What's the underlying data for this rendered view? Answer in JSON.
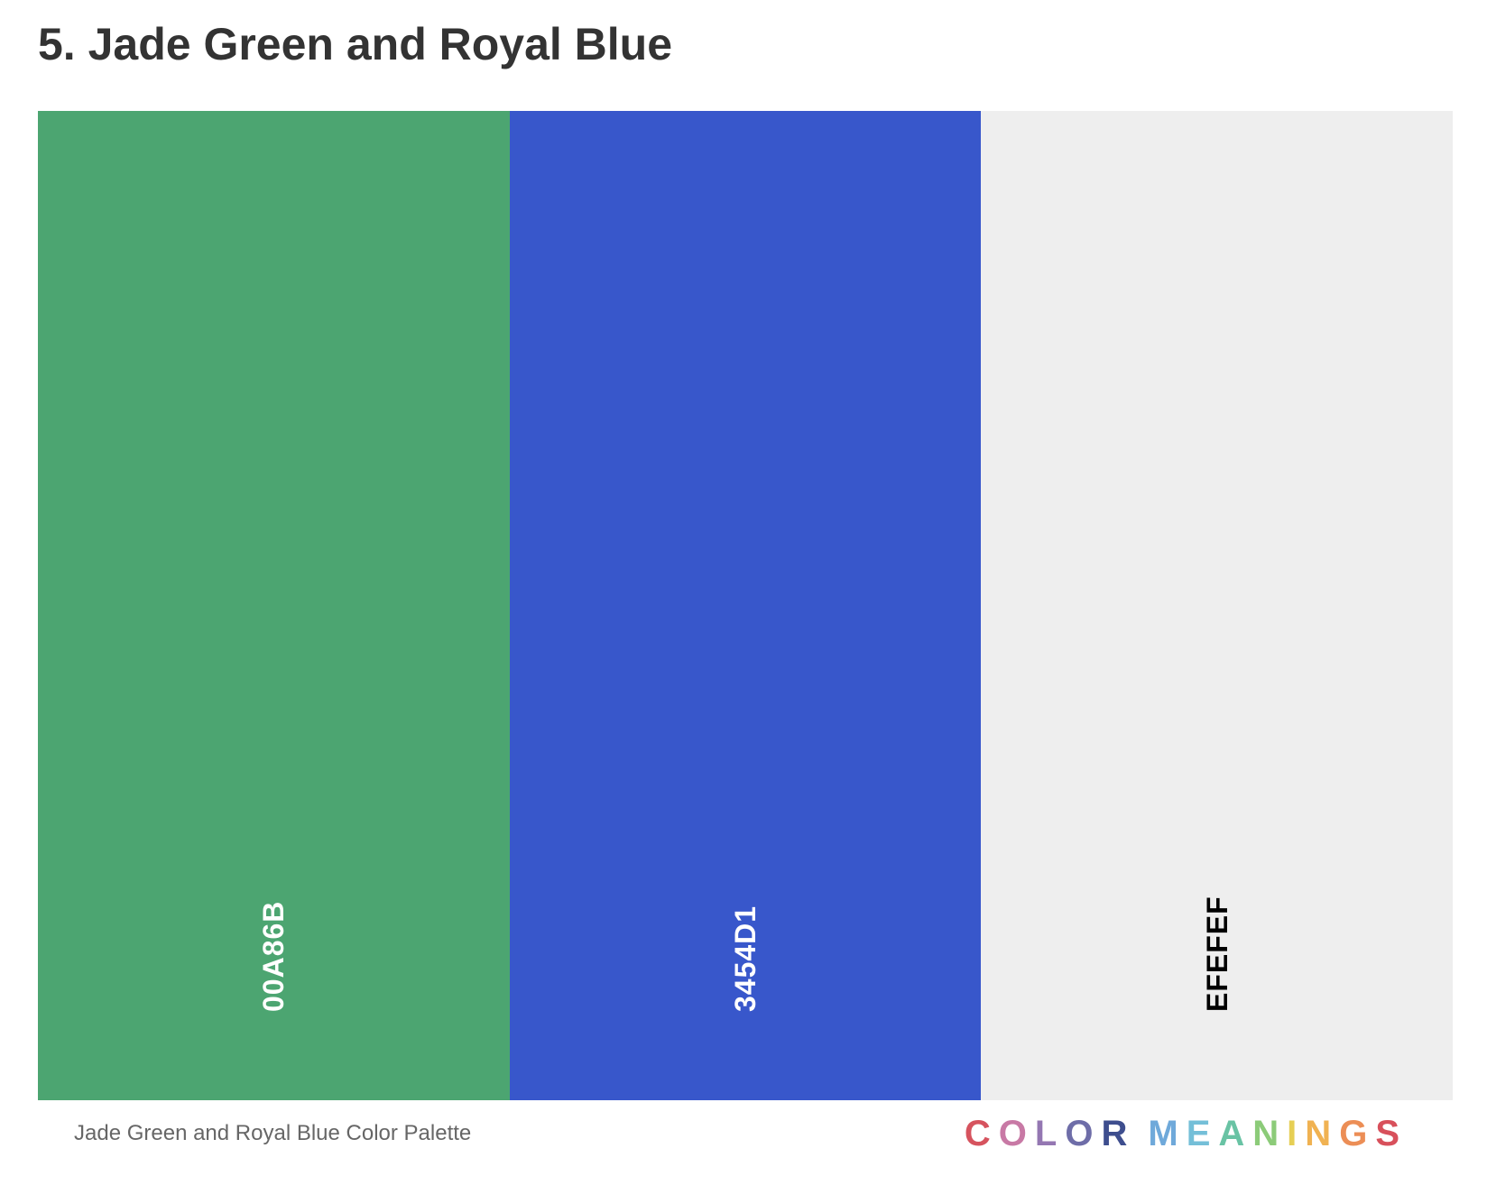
{
  "heading": "5. Jade Green and Royal Blue",
  "palette": {
    "swatches": [
      {
        "hex": "00A86B",
        "fill": "#4CA571",
        "text_color": "#FFFFFF"
      },
      {
        "hex": "3454D1",
        "fill": "#3857CB",
        "text_color": "#FFFFFF"
      },
      {
        "hex": "EFEFEF",
        "fill": "#EEEEEE",
        "text_color": "#000000"
      }
    ]
  },
  "caption": "Jade Green and Royal Blue Color Palette",
  "brand": {
    "text": "COLOR MEANINGS",
    "letters": [
      {
        "char": "C",
        "color": "#D6535E"
      },
      {
        "char": "O",
        "color": "#C879A5"
      },
      {
        "char": "L",
        "color": "#9477B2"
      },
      {
        "char": "O",
        "color": "#6E6DA8"
      },
      {
        "char": "R",
        "color": "#3E4E8E"
      },
      {
        "char": " ",
        "color": "#FFFFFF"
      },
      {
        "char": "M",
        "color": "#6FA9DA"
      },
      {
        "char": "E",
        "color": "#74BFD8"
      },
      {
        "char": "A",
        "color": "#69C3A4"
      },
      {
        "char": "N",
        "color": "#8CCB79"
      },
      {
        "char": "I",
        "color": "#E6CF55"
      },
      {
        "char": "N",
        "color": "#F0B252"
      },
      {
        "char": "G",
        "color": "#EC8E56"
      },
      {
        "char": "S",
        "color": "#D8505B"
      }
    ]
  }
}
